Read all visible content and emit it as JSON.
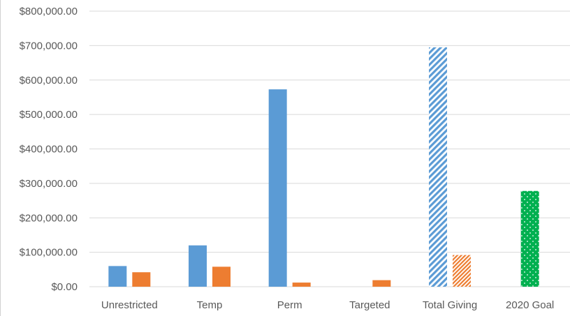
{
  "chart_data": {
    "type": "bar",
    "title": "",
    "xlabel": "",
    "ylabel": "",
    "ylim": [
      0,
      800000
    ],
    "y_ticks": [
      0,
      100000,
      200000,
      300000,
      400000,
      500000,
      600000,
      700000,
      800000
    ],
    "y_tick_labels": [
      "$0.00",
      "$100,000.00",
      "$200,000.00",
      "$300,000.00",
      "$400,000.00",
      "$500,000.00",
      "$600,000.00",
      "$700,000.00",
      "$800,000.00"
    ],
    "grid": true,
    "legend": "none",
    "categories": [
      "Unrestricted",
      "Temp",
      "Perm",
      "Targeted",
      "Total Giving",
      "2020 Goal"
    ],
    "series": [
      {
        "color": "#5b9bd5",
        "values": [
          60000,
          120000,
          573000,
          null,
          695000,
          null
        ],
        "patterns": [
          "solid",
          "solid",
          "solid",
          "solid",
          "diagonal-stripes",
          "solid"
        ]
      },
      {
        "color": "#ed7d31",
        "values": [
          42000,
          58000,
          12000,
          19000,
          92000,
          null
        ],
        "patterns": [
          "solid",
          "solid",
          "solid",
          "solid",
          "diagonal-stripes",
          "solid"
        ]
      },
      {
        "color": "#00b050",
        "values": [
          null,
          null,
          null,
          null,
          null,
          278000
        ],
        "patterns": [
          "solid",
          "solid",
          "solid",
          "solid",
          "solid",
          "dots"
        ]
      }
    ]
  }
}
